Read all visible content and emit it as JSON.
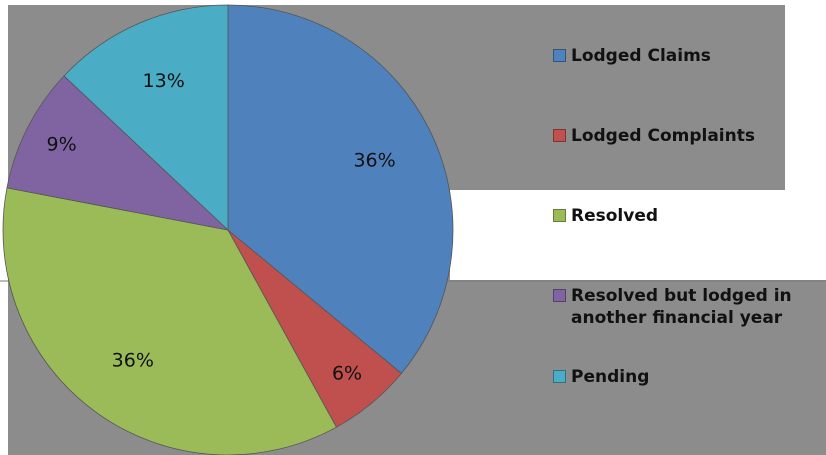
{
  "chart_data": {
    "type": "pie",
    "categories": [
      "Lodged Claims",
      "Lodged Complaints",
      "Resolved",
      "Resolved but lodged in another financial year",
      "Pending"
    ],
    "values": [
      36,
      6,
      36,
      9,
      13
    ],
    "value_labels": [
      "36%",
      "6%",
      "36%",
      "9%",
      "13%"
    ],
    "colors": [
      "#4f81bd",
      "#c0504d",
      "#9bbb59",
      "#8064a2",
      "#4bacc6"
    ]
  }
}
